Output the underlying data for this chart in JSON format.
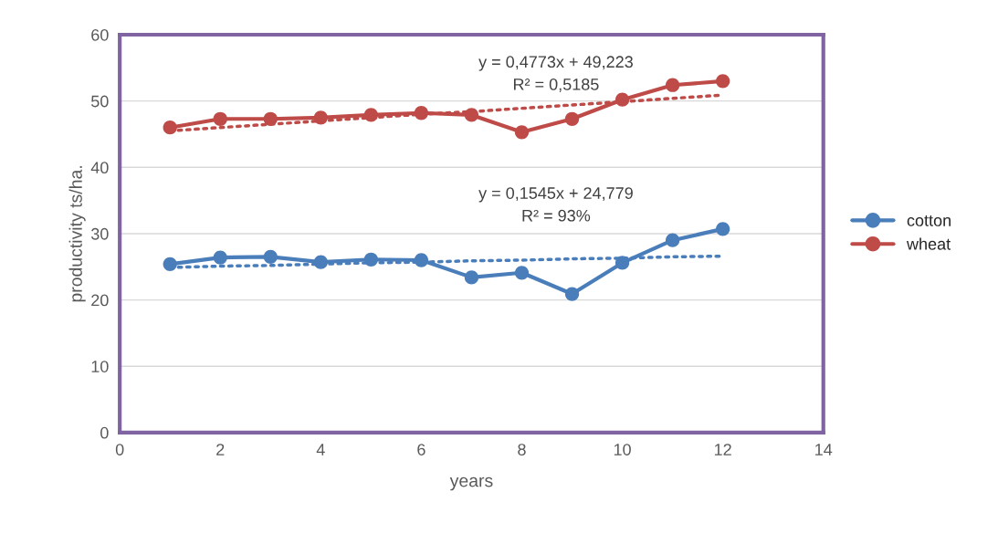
{
  "chart_data": {
    "type": "line",
    "xlabel": "years",
    "ylabel": "productivity ts/ha.",
    "x": [
      1,
      2,
      3,
      4,
      5,
      6,
      7,
      8,
      9,
      10,
      11,
      12
    ],
    "series": [
      {
        "name": "cotton",
        "color": "#4a7ebb",
        "values": [
          25.4,
          26.4,
          26.5,
          25.7,
          26.1,
          26.0,
          23.4,
          24.1,
          20.9,
          25.6,
          29.0,
          30.7
        ],
        "marker": "circle"
      },
      {
        "name": "wheat",
        "color": "#be4b48",
        "values": [
          46.0,
          47.3,
          47.3,
          47.5,
          47.9,
          48.2,
          47.9,
          45.3,
          47.3,
          50.2,
          52.4,
          53.0
        ],
        "marker": "circle"
      },
      {
        "color": "#4a7ebb",
        "values": [
          24.9,
          25.1,
          25.2,
          25.4,
          25.6,
          25.7,
          25.9,
          26.0,
          26.2,
          26.3,
          26.5,
          26.6
        ],
        "line_style": "dotted",
        "marker": "none"
      },
      {
        "color": "#be4b48",
        "values": [
          45.5,
          46.0,
          46.5,
          47.0,
          47.5,
          48.0,
          48.4,
          48.9,
          49.4,
          49.9,
          50.4,
          50.9
        ],
        "line_style": "dotted",
        "marker": "none"
      }
    ],
    "xlim": [
      0,
      14
    ],
    "xticks": [
      0,
      2,
      4,
      6,
      8,
      10,
      12,
      14
    ],
    "ylim": [
      0,
      60
    ],
    "yticks": [
      0,
      10,
      20,
      30,
      40,
      50,
      60
    ],
    "grid": "y",
    "legend": "right",
    "annotations": [
      "y = 0,4773x + 49,223\nR² = 0,5185",
      "y = 0,1545x + 24,779\nR² = 93%"
    ]
  }
}
